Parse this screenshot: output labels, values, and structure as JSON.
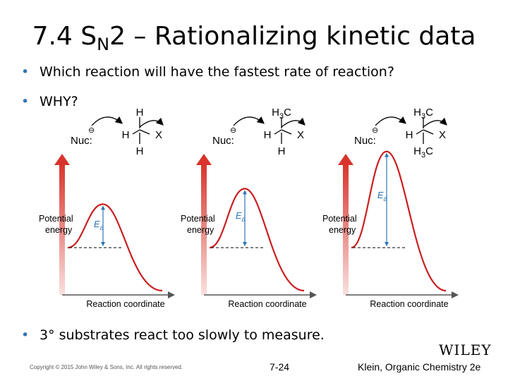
{
  "slide": {
    "title_prefix": "7.4 S",
    "title_sub": "N",
    "title_rest": "2 – Rationalizing kinetic data",
    "bullets": [
      "Which reaction will have the fastest rate of reaction?",
      "WHY?",
      "3° substrates react too slowly to measure."
    ]
  },
  "figure": {
    "panels": [
      {
        "substrate": "methyl",
        "nuc_label": "Nuc:",
        "charge": "⊖",
        "top_group": "H",
        "left_group": "H",
        "bottom_group": "H",
        "leaving_group": "X",
        "y_label_1": "Potential",
        "y_label_2": "energy",
        "ea_main": "E",
        "ea_sub": "a",
        "x_label": "Reaction coordinate",
        "activation_energy_relative": 0.28
      },
      {
        "substrate": "primary",
        "nuc_label": "Nuc:",
        "charge": "⊖",
        "top_group": "H3C",
        "left_group": "H",
        "bottom_group": "H",
        "leaving_group": "X",
        "y_label_1": "Potential",
        "y_label_2": "energy",
        "ea_main": "E",
        "ea_sub": "a",
        "x_label": "Reaction coordinate",
        "activation_energy_relative": 0.38
      },
      {
        "substrate": "secondary",
        "nuc_label": "Nuc:",
        "charge": "⊖",
        "top_group": "H3C",
        "left_group": "H",
        "bottom_group": "H3C",
        "leaving_group": "X",
        "y_label_1": "Potential",
        "y_label_2": "energy",
        "ea_main": "E",
        "ea_sub": "a",
        "x_label": "Reaction coordinate",
        "activation_energy_relative": 0.62
      }
    ]
  },
  "footer": {
    "copyright": "Copyright © 2015 John Wiley & Sons, Inc. All rights reserved.",
    "page": "7-24",
    "credit": "Klein, Organic Chemistry 2e",
    "publisher_logo": "WILEY"
  },
  "colors": {
    "bullet": "#2f75b5",
    "axis_arrow": "#d8342b",
    "x_axis": "#555555",
    "ea_arrow": "#2f75b5",
    "curve": "#c91f1f"
  }
}
